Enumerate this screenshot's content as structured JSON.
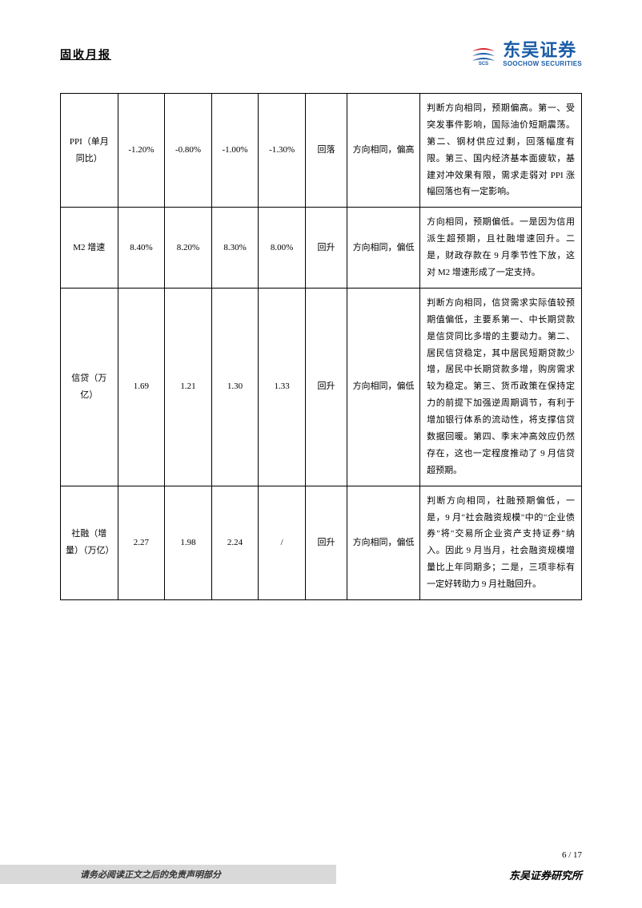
{
  "header": {
    "title": "固收月报",
    "brand_cn": "东吴证券",
    "brand_en": "SOOCHOW SECURITIES",
    "brand_color": "#1a5ca8"
  },
  "table": {
    "columns": [
      "indicator",
      "v1",
      "v2",
      "v3",
      "v4",
      "trend",
      "eval",
      "desc"
    ],
    "col_widths": [
      "11%",
      "9%",
      "9%",
      "9%",
      "9%",
      "8%",
      "14%",
      "31%"
    ],
    "border_color": "#000000",
    "font_size": 11,
    "rows": [
      {
        "indicator": "PPI（单月同比）",
        "v1": "-1.20%",
        "v2": "-0.80%",
        "v3": "-1.00%",
        "v4": "-1.30%",
        "trend": "回落",
        "eval": "方向相同，偏高",
        "desc": "判断方向相同，预期偏高。第一、受突发事件影响，国际油价短期震荡。第二、钢材供应过剩，回落幅度有限。第三、国内经济基本面疲软，基建对冲效果有限，需求走弱对 PPI 涨幅回落也有一定影响。"
      },
      {
        "indicator": "M2 增速",
        "v1": "8.40%",
        "v2": "8.20%",
        "v3": "8.30%",
        "v4": "8.00%",
        "trend": "回升",
        "eval": "方向相同，偏低",
        "desc": "方向相同，预期偏低。一是因为信用派生超预期，且社融增速回升。二是，财政存款在 9 月季节性下放，这对 M2 增速形成了一定支持。"
      },
      {
        "indicator": "信贷（万亿）",
        "v1": "1.69",
        "v2": "1.21",
        "v3": "1.30",
        "v4": "1.33",
        "trend": "回升",
        "eval": "方向相同，偏低",
        "desc": "判断方向相同，信贷需求实际值较预期值偏低，主要系第一、中长期贷款是信贷同比多增的主要动力。第二、居民信贷稳定，其中居民短期贷款少增，居民中长期贷款多增，购房需求较为稳定。第三、货币政策在保持定力的前提下加强逆周期调节，有利于增加银行体系的流动性，将支撑信贷数据回暖。第四、季末冲高效应仍然存在，这也一定程度推动了 9 月信贷超预期。"
      },
      {
        "indicator": "社融（增量）（万亿）",
        "v1": "2.27",
        "v2": "1.98",
        "v3": "2.24",
        "v4": "/",
        "trend": "回升",
        "eval": "方向相同，偏低",
        "desc": "判断方向相同，社融预期偏低，一是，9 月\"社会融资规模\"中的\"企业债券\"将\"交易所企业资产支持证券\"纳入。因此 9 月当月，社会融资规模增量比上年同期多；二是，三项非标有一定好转助力 9 月社融回升。"
      }
    ]
  },
  "footer": {
    "page_cur": "6",
    "page_total": "17",
    "disclaimer": "请务必阅读正文之后的免责声明部分",
    "institute": "东吴证券研究所",
    "bar_bg": "#d9d9d9"
  }
}
